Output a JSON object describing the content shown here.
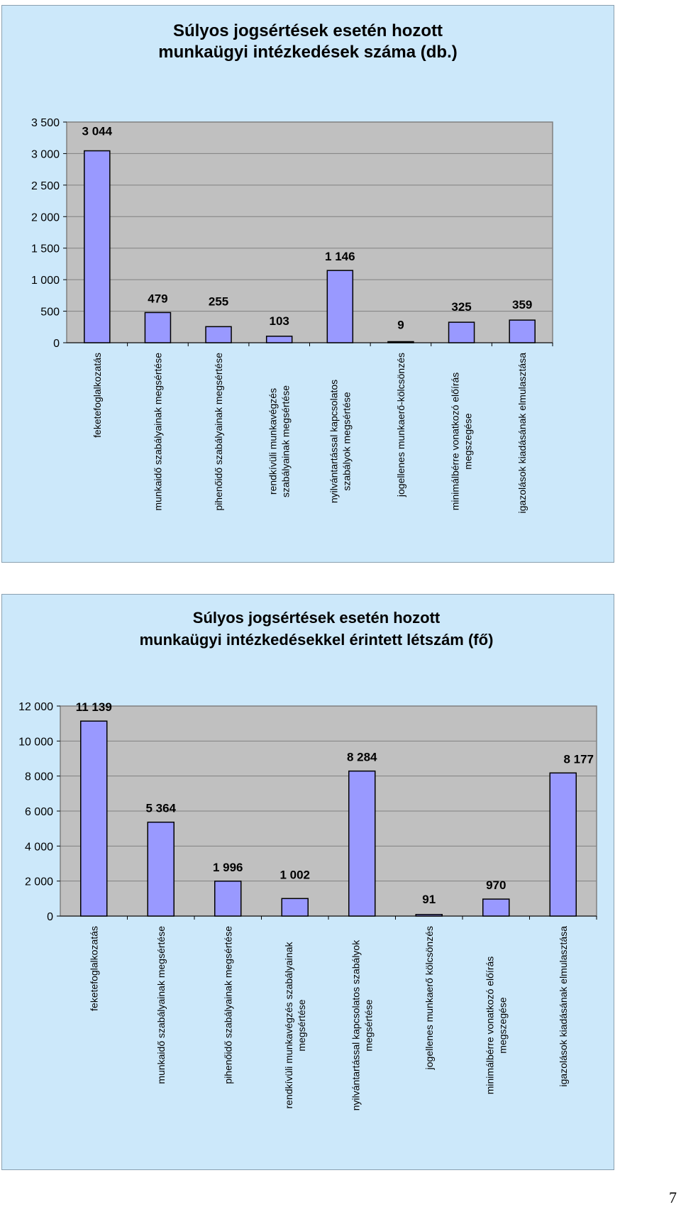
{
  "page_number": "7",
  "chart_data": [
    {
      "type": "bar",
      "title": "Súlyos jogsértések esetén hozott munkaügyi intézkedések száma (db.)",
      "categories": [
        "feketefoglalkozatás",
        "munkaidő szabályainak megsértése",
        "pihenőidő szabályainak megsértése",
        "rendkívüli munkavégzés szabályainak megsértése",
        "nyilvántartással kapcsolatos szabályok megsértése",
        "jogellenes munkaerő-kölcsönzés",
        "minimálbérre vonatkozó előírás megszegése",
        "igazolások kiadásának elmulasztása"
      ],
      "values": [
        3044,
        479,
        255,
        103,
        1146,
        9,
        325,
        359
      ],
      "value_labels": [
        "3 044",
        "479",
        "255",
        "103",
        "1 146",
        "9",
        "325",
        "359"
      ],
      "ylim": [
        0,
        3500
      ],
      "yticks": [
        0,
        500,
        1000,
        1500,
        2000,
        2500,
        3000,
        3500
      ],
      "ytick_labels": [
        "0",
        "500",
        "1 000",
        "1 500",
        "2 000",
        "2 500",
        "3 000",
        "3 500"
      ],
      "grid": true,
      "colors": {
        "bar": "#9999ff",
        "bar_border": "#000000",
        "plot_bg": "#c0c0c0",
        "panel_bg": "#cce8fa",
        "grid": "#808080"
      }
    },
    {
      "type": "bar",
      "title": "Súlyos jogsértések esetén hozott munkaügyi intézkedésekkel érintett létszám (fő)",
      "categories": [
        "feketefoglalkozatás",
        "munkaidő szabályainak megsértése",
        "pihenőidő szabályainak megsértése",
        "rendkívüli munkavégzés szabályainak megsértése",
        "nyilvántartással kapcsolatos szabályok megsértése",
        "jogellenes munkaerő kölcsönzés",
        "minimálbérre vonatkozó előírás megszegése",
        "igazolások kiadásának elmulasztása"
      ],
      "values": [
        11139,
        5364,
        1996,
        1002,
        8284,
        91,
        970,
        8177
      ],
      "value_labels": [
        "11 139",
        "5 364",
        "1 996",
        "1 002",
        "8 284",
        "91",
        "970",
        "8 177"
      ],
      "ylim": [
        0,
        12000
      ],
      "yticks": [
        0,
        2000,
        4000,
        6000,
        8000,
        10000,
        12000
      ],
      "ytick_labels": [
        "0",
        "2 000",
        "4 000",
        "6 000",
        "8 000",
        "10 000",
        "12 000"
      ],
      "grid": true,
      "colors": {
        "bar": "#9999ff",
        "bar_border": "#000000",
        "plot_bg": "#c0c0c0",
        "panel_bg": "#cce8fa",
        "grid": "#808080"
      }
    }
  ]
}
